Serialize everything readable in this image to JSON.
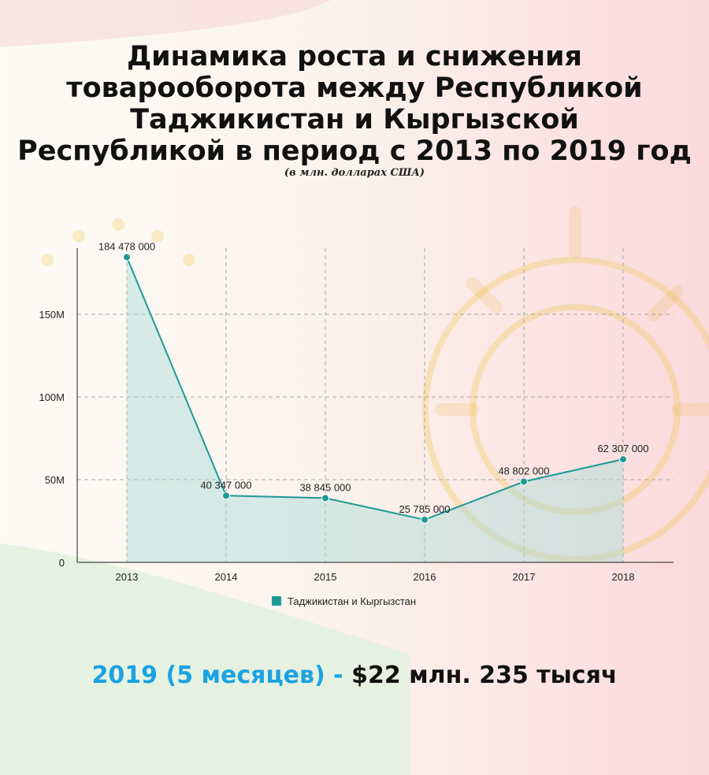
{
  "title_lines": [
    "Динамика роста и снижения",
    "товарооборота между Республикой",
    "Таджикистан и Кыргызской",
    "Республикой в период с 2013 по 2019 год"
  ],
  "subtitle": "(в млн. долларах США)",
  "colors": {
    "series": "#1e9a94",
    "fill": "#a8dcd8",
    "grid": "#a9a9a9",
    "highlight": "#1aa3e2",
    "text": "#111111"
  },
  "chart_data": {
    "type": "line",
    "x": [
      "2013",
      "2014",
      "2015",
      "2016",
      "2017",
      "2018"
    ],
    "series": [
      {
        "name": "Таджикистан и Кыргызстан",
        "values": [
          184478000,
          40347000,
          38845000,
          25785000,
          48802000,
          62307000
        ],
        "labels": [
          "184 478 000",
          "40 347 000",
          "38 845 000",
          "25 785 000",
          "48 802 000",
          "62 307 000"
        ]
      }
    ],
    "yticks": [
      {
        "value": 0,
        "label": "0"
      },
      {
        "value": 50000000,
        "label": "50M"
      },
      {
        "value": 100000000,
        "label": "100M"
      },
      {
        "value": 150000000,
        "label": "150M"
      }
    ],
    "ylim": [
      0,
      190000000
    ],
    "grid": true,
    "area_fill": true,
    "legend_position": "bottom"
  },
  "summary": {
    "highlight": "2019 (5 месяцев) -",
    "value": "$22 млн. 235 тысяч"
  }
}
